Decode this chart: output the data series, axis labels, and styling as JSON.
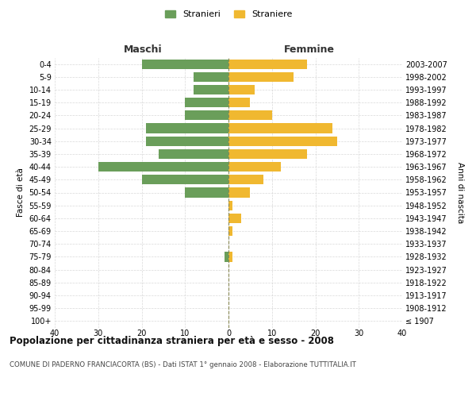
{
  "age_groups": [
    "100+",
    "95-99",
    "90-94",
    "85-89",
    "80-84",
    "75-79",
    "70-74",
    "65-69",
    "60-64",
    "55-59",
    "50-54",
    "45-49",
    "40-44",
    "35-39",
    "30-34",
    "25-29",
    "20-24",
    "15-19",
    "10-14",
    "5-9",
    "0-4"
  ],
  "birth_years": [
    "≤ 1907",
    "1908-1912",
    "1913-1917",
    "1918-1922",
    "1923-1927",
    "1928-1932",
    "1933-1937",
    "1938-1942",
    "1943-1947",
    "1948-1952",
    "1953-1957",
    "1958-1962",
    "1963-1967",
    "1968-1972",
    "1973-1977",
    "1978-1982",
    "1983-1987",
    "1988-1992",
    "1993-1997",
    "1998-2002",
    "2003-2007"
  ],
  "males": [
    0,
    0,
    0,
    0,
    0,
    1,
    0,
    0,
    0,
    0,
    10,
    20,
    30,
    16,
    19,
    19,
    10,
    10,
    8,
    8,
    20
  ],
  "females": [
    0,
    0,
    0,
    0,
    0,
    1,
    0,
    1,
    3,
    1,
    5,
    8,
    12,
    18,
    25,
    24,
    10,
    5,
    6,
    15,
    18
  ],
  "male_color": "#6a9e5a",
  "female_color": "#f0b830",
  "background_color": "#ffffff",
  "grid_color": "#d0d0d0",
  "title": "Popolazione per cittadinanza straniera per età e sesso - 2008",
  "subtitle": "COMUNE DI PADERNO FRANCIACORTA (BS) - Dati ISTAT 1° gennaio 2008 - Elaborazione TUTTITALIA.IT",
  "xlabel_left": "Maschi",
  "xlabel_right": "Femmine",
  "ylabel_left": "Fasce di età",
  "ylabel_right": "Anni di nascita",
  "legend_stranieri": "Stranieri",
  "legend_straniere": "Straniere",
  "xlim": 40
}
